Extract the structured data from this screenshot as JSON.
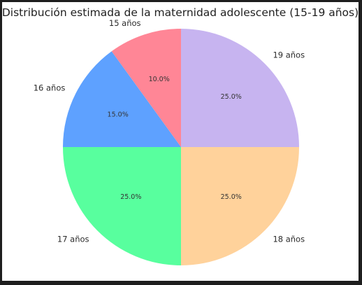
{
  "chart_data": {
    "type": "pie",
    "title": "Distribución estimada de la maternidad adolescente (15-19 años)",
    "start_angle_deg": 90,
    "direction": "counterclockwise",
    "slices": [
      {
        "label": "15 años",
        "value": 10.0,
        "pct_label": "10.0%",
        "color": "#ff8696"
      },
      {
        "label": "16 años",
        "value": 15.0,
        "pct_label": "15.0%",
        "color": "#5ea1ff"
      },
      {
        "label": "17 años",
        "value": 25.0,
        "pct_label": "25.0%",
        "color": "#58ff9e"
      },
      {
        "label": "18 años",
        "value": 25.0,
        "pct_label": "25.0%",
        "color": "#ffd29b"
      },
      {
        "label": "19 años",
        "value": 25.0,
        "pct_label": "25.0%",
        "color": "#c7b4f0"
      }
    ]
  }
}
